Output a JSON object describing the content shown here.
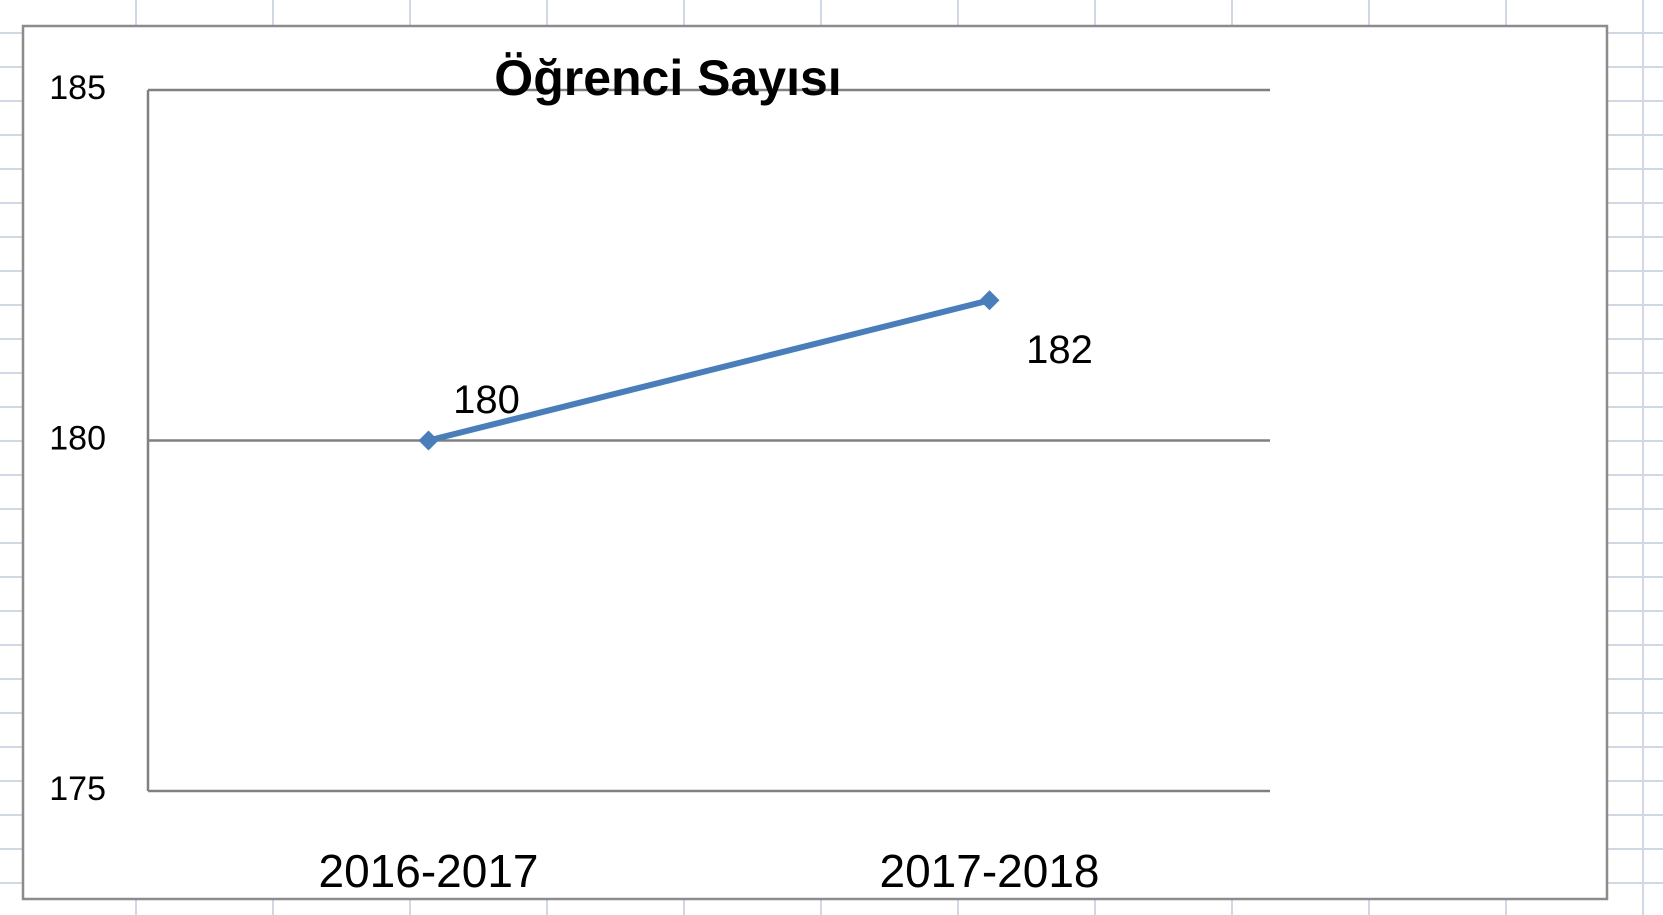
{
  "chart_data": {
    "type": "line",
    "title": "Öğrenci Sayısı",
    "categories": [
      "2016-2017",
      "2017-2018"
    ],
    "series": [
      {
        "name": "Öğrenci Sayısı",
        "color": "#4a7ebb",
        "values": [
          180,
          182
        ]
      }
    ],
    "ylim": [
      175,
      185
    ],
    "yticks": [
      175,
      180,
      185
    ],
    "grid": true
  }
}
